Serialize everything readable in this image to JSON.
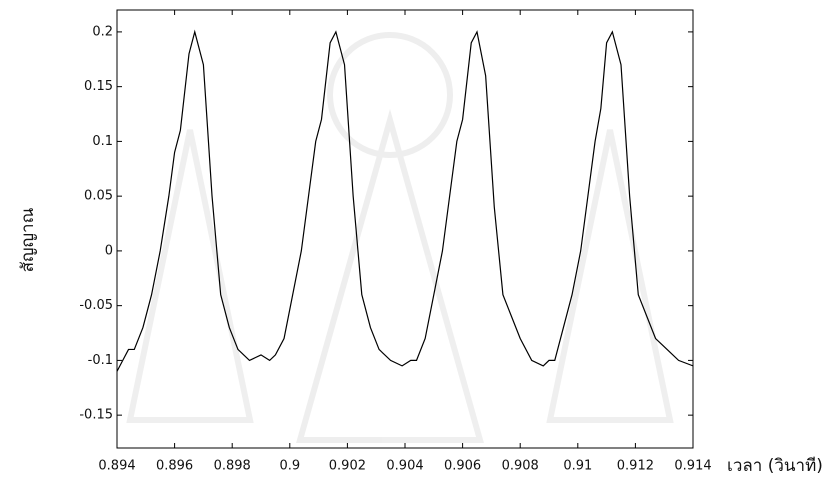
{
  "chart_data": {
    "type": "line",
    "xlabel": "เวลา (วินาที)",
    "ylabel": "สัญญาณ",
    "xlim": [
      0.894,
      0.914
    ],
    "xticks": [
      0.894,
      0.896,
      0.898,
      0.9,
      0.902,
      0.904,
      0.906,
      0.908,
      0.91,
      0.912,
      0.914
    ],
    "ylim": [
      -0.18,
      0.22
    ],
    "yticks": [
      0.2,
      0.15,
      0.1,
      0.05,
      0,
      -0.05,
      -0.1,
      -0.15
    ],
    "grid": false,
    "series": [
      {
        "color": "#000000",
        "x": [
          0.894,
          0.8942,
          0.8944,
          0.8946,
          0.8949,
          0.8952,
          0.8955,
          0.8958,
          0.896,
          0.8962,
          0.8965,
          0.8967,
          0.897,
          0.8973,
          0.8976,
          0.8979,
          0.8982,
          0.8986,
          0.899,
          0.8993,
          0.8995,
          0.8998,
          0.9001,
          0.9004,
          0.9007,
          0.9009,
          0.9011,
          0.9014,
          0.9016,
          0.9019,
          0.9022,
          0.9025,
          0.9028,
          0.9031,
          0.9035,
          0.9039,
          0.9042,
          0.9044,
          0.9047,
          0.905,
          0.9053,
          0.9056,
          0.9058,
          0.906,
          0.9063,
          0.9065,
          0.9068,
          0.9071,
          0.9074,
          0.9077,
          0.908,
          0.9084,
          0.9088,
          0.909,
          0.9092,
          0.9095,
          0.9098,
          0.9101,
          0.9104,
          0.9106,
          0.9108,
          0.911,
          0.9112,
          0.9115,
          0.9118,
          0.9121,
          0.9124,
          0.9127,
          0.9131,
          0.9135,
          0.914
        ],
        "values": [
          -0.11,
          -0.1,
          -0.09,
          -0.09,
          -0.07,
          -0.04,
          0.0,
          0.05,
          0.09,
          0.11,
          0.18,
          0.2,
          0.17,
          0.05,
          -0.04,
          -0.07,
          -0.09,
          -0.1,
          -0.095,
          -0.1,
          -0.095,
          -0.08,
          -0.04,
          0.0,
          0.06,
          0.1,
          0.12,
          0.19,
          0.2,
          0.17,
          0.05,
          -0.04,
          -0.07,
          -0.09,
          -0.1,
          -0.105,
          -0.1,
          -0.1,
          -0.08,
          -0.04,
          0.0,
          0.06,
          0.1,
          0.12,
          0.19,
          0.2,
          0.16,
          0.04,
          -0.04,
          -0.06,
          -0.08,
          -0.1,
          -0.105,
          -0.1,
          -0.1,
          -0.07,
          -0.04,
          0.0,
          0.06,
          0.1,
          0.13,
          0.19,
          0.2,
          0.17,
          0.05,
          -0.04,
          -0.06,
          -0.08,
          -0.09,
          -0.1,
          -0.105
        ]
      }
    ]
  }
}
